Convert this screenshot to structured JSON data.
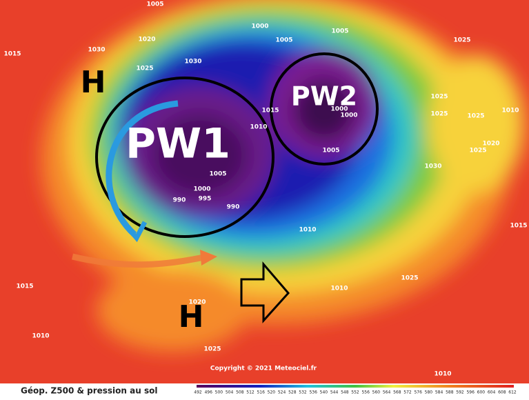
{
  "map": {
    "labels": {
      "pw1": "PW1",
      "pw2": "PW2",
      "highs": [
        "H",
        "H"
      ]
    },
    "pressure_labels": [
      "1005",
      "1015",
      "1030",
      "1020",
      "1025",
      "1030",
      "1000",
      "1005",
      "1005",
      "1025",
      "1015",
      "1010",
      "1000",
      "1000",
      "1005",
      "1005",
      "1000",
      "990",
      "995",
      "990",
      "1025",
      "1025",
      "1010",
      "1025",
      "1020",
      "1025",
      "1030",
      "1015",
      "1010",
      "1025",
      "1010",
      "1015",
      "1010",
      "1020",
      "1025",
      "1010"
    ],
    "copyright": "Copyright © 2021 Meteociel.fr",
    "footer": {
      "title": "Géop. Z500 & pression au sol",
      "scale": [
        492,
        496,
        500,
        504,
        508,
        512,
        516,
        520,
        524,
        528,
        532,
        536,
        540,
        544,
        548,
        552,
        556,
        560,
        564,
        568,
        572,
        576,
        580,
        584,
        588,
        592,
        596,
        600,
        604,
        608,
        612
      ]
    }
  }
}
